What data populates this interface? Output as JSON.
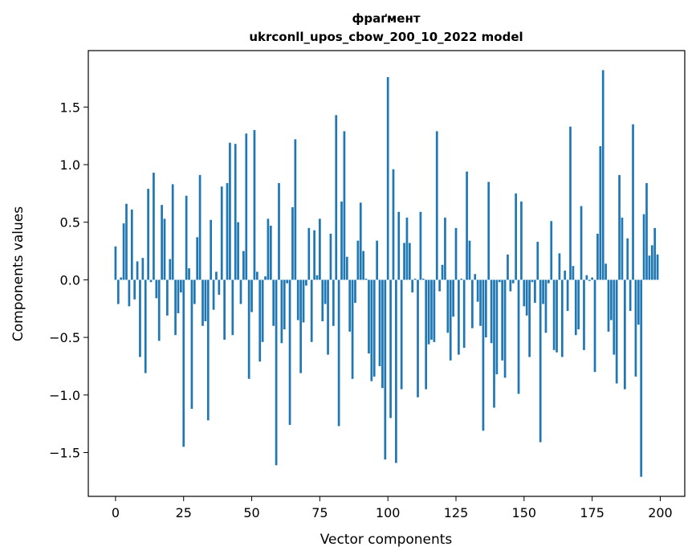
{
  "chart_data": {
    "type": "bar",
    "title_line1": "фраґмент",
    "title_line2": "ukrconll_upos_cbow_200_10_2022 model",
    "xlabel": "Vector components",
    "ylabel": "Components values",
    "xlim": [
      -10,
      209
    ],
    "ylim": [
      -1.88,
      1.99
    ],
    "xticks": [
      0,
      25,
      50,
      75,
      100,
      125,
      150,
      175,
      200
    ],
    "xtick_labels": [
      "0",
      "25",
      "50",
      "75",
      "100",
      "125",
      "150",
      "175",
      "200"
    ],
    "yticks": [
      -1.5,
      -1.0,
      -0.5,
      0.0,
      0.5,
      1.0,
      1.5
    ],
    "ytick_labels": [
      "−1.5",
      "−1.0",
      "−0.5",
      "0.0",
      "0.5",
      "1.0",
      "1.5"
    ],
    "bar_color": "#1f77b4",
    "values": [
      0.29,
      -0.21,
      0.02,
      0.49,
      0.66,
      -0.23,
      0.61,
      -0.17,
      0.16,
      -0.67,
      0.19,
      -0.81,
      0.79,
      -0.02,
      0.93,
      -0.16,
      -0.53,
      0.65,
      0.53,
      -0.31,
      0.18,
      0.83,
      -0.48,
      -0.29,
      -0.11,
      -1.45,
      0.73,
      0.1,
      -1.12,
      -0.21,
      0.37,
      0.91,
      -0.4,
      -0.36,
      -1.22,
      0.52,
      -0.26,
      0.07,
      -0.13,
      0.81,
      -0.52,
      0.84,
      1.19,
      -0.48,
      1.18,
      0.5,
      -0.21,
      0.25,
      1.27,
      -0.86,
      -0.28,
      1.3,
      0.07,
      -0.71,
      -0.54,
      0.03,
      0.53,
      0.47,
      -0.4,
      -1.61,
      0.84,
      -0.55,
      -0.43,
      -0.03,
      -1.26,
      0.63,
      1.22,
      -0.35,
      -0.81,
      -0.37,
      -0.05,
      0.45,
      -0.54,
      0.43,
      0.04,
      0.53,
      -0.36,
      -0.21,
      -0.65,
      0.4,
      -0.4,
      1.43,
      -1.27,
      0.68,
      1.29,
      0.2,
      -0.45,
      -0.86,
      -0.2,
      0.34,
      0.67,
      0.25,
      0.01,
      -0.64,
      -0.88,
      -0.84,
      0.34,
      -0.75,
      -0.94,
      -1.56,
      1.76,
      -1.2,
      0.96,
      -1.59,
      0.59,
      -0.95,
      0.32,
      0.54,
      0.32,
      -0.11,
      0.01,
      -1.02,
      0.59,
      0.01,
      -0.95,
      -0.56,
      -0.52,
      -0.54,
      1.29,
      -0.1,
      0.13,
      0.54,
      -0.46,
      -0.7,
      -0.32,
      0.45,
      -0.65,
      0.01,
      -0.59,
      0.94,
      0.34,
      -0.42,
      0.05,
      -0.19,
      -0.4,
      -1.31,
      -0.5,
      0.85,
      -0.55,
      -1.11,
      -0.82,
      -0.02,
      -0.7,
      -0.85,
      0.22,
      -0.1,
      -0.03,
      0.75,
      -0.99,
      0.68,
      -0.23,
      -0.31,
      -0.67,
      -0.02,
      -0.2,
      0.33,
      -1.41,
      -0.21,
      -0.46,
      -0.03,
      0.51,
      -0.61,
      -0.63,
      0.23,
      -0.67,
      0.08,
      -0.27,
      1.33,
      0.12,
      -0.48,
      -0.43,
      0.64,
      -0.61,
      0.04,
      -0.01,
      0.02,
      -0.8,
      0.4,
      1.16,
      1.82,
      0.14,
      -0.45,
      -0.35,
      -0.65,
      -0.9,
      0.91,
      0.54,
      -0.95,
      0.36,
      -0.27,
      1.35,
      -0.84,
      -0.39,
      -1.71,
      0.57,
      0.84,
      0.21,
      0.3,
      0.45,
      0.22
    ]
  }
}
